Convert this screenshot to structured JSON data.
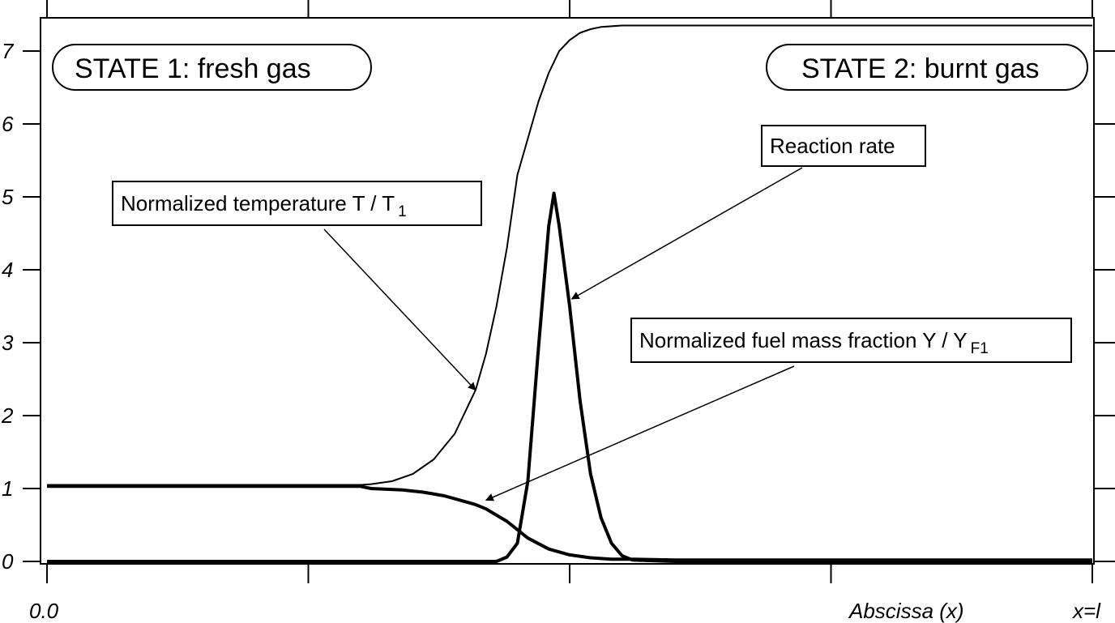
{
  "chart_data": {
    "type": "line",
    "title": "",
    "xlabel": "Abscissa (x)",
    "x_start_label": "0.0",
    "x_end_label": "x=l",
    "xlim": [
      0,
      1
    ],
    "ylim": [
      0,
      7.35
    ],
    "y_ticks": [
      0,
      1,
      2,
      3,
      4,
      5,
      6,
      7
    ],
    "grid": false,
    "series": [
      {
        "name": "Normalized temperature T / T1",
        "style": "thin",
        "x": [
          0.0,
          0.25,
          0.3,
          0.31,
          0.33,
          0.35,
          0.37,
          0.39,
          0.41,
          0.42,
          0.43,
          0.44,
          0.45,
          0.46,
          0.47,
          0.48,
          0.49,
          0.5,
          0.51,
          0.52,
          0.53,
          0.55,
          0.57,
          0.6,
          1.0
        ],
        "values": [
          1.05,
          1.05,
          1.05,
          1.06,
          1.1,
          1.2,
          1.4,
          1.75,
          2.35,
          2.85,
          3.5,
          4.3,
          5.3,
          5.8,
          6.3,
          6.7,
          7.0,
          7.15,
          7.25,
          7.3,
          7.33,
          7.35,
          7.35,
          7.35,
          7.35
        ]
      },
      {
        "name": "Normalized fuel mass fraction Y / YF1",
        "style": "thick",
        "x": [
          0.0,
          0.3,
          0.31,
          0.34,
          0.36,
          0.38,
          0.4,
          0.41,
          0.42,
          0.44,
          0.46,
          0.48,
          0.5,
          0.52,
          0.54,
          0.56,
          0.6,
          1.0
        ],
        "values": [
          1.03,
          1.03,
          1.0,
          0.98,
          0.95,
          0.9,
          0.82,
          0.78,
          0.72,
          0.55,
          0.32,
          0.17,
          0.09,
          0.05,
          0.03,
          0.03,
          0.02,
          0.02
        ]
      },
      {
        "name": "Reaction rate",
        "style": "thick",
        "x": [
          0.0,
          0.43,
          0.44,
          0.45,
          0.46,
          0.47,
          0.48,
          0.485,
          0.49,
          0.5,
          0.51,
          0.52,
          0.53,
          0.54,
          0.55,
          0.56,
          0.6,
          1.0
        ],
        "values": [
          0.0,
          0.0,
          0.06,
          0.25,
          1.1,
          2.9,
          4.6,
          5.05,
          4.6,
          3.5,
          2.2,
          1.2,
          0.6,
          0.25,
          0.08,
          0.02,
          0.0,
          0.0
        ]
      }
    ],
    "annotations": [
      {
        "id": "temperature",
        "label": "Normalized temperature T / T",
        "sub": "1",
        "arrow_to": [
          0.41,
          2.35
        ]
      },
      {
        "id": "reaction",
        "label": "Reaction rate",
        "sub": "",
        "arrow_to": [
          0.502,
          3.6
        ]
      },
      {
        "id": "fuel",
        "label": "Normalized fuel mass fraction Y  / Y",
        "sub": "F1",
        "arrow_to": [
          0.42,
          0.84
        ]
      }
    ],
    "state_labels": [
      "STATE 1: fresh gas",
      "STATE 2: burnt gas"
    ]
  }
}
